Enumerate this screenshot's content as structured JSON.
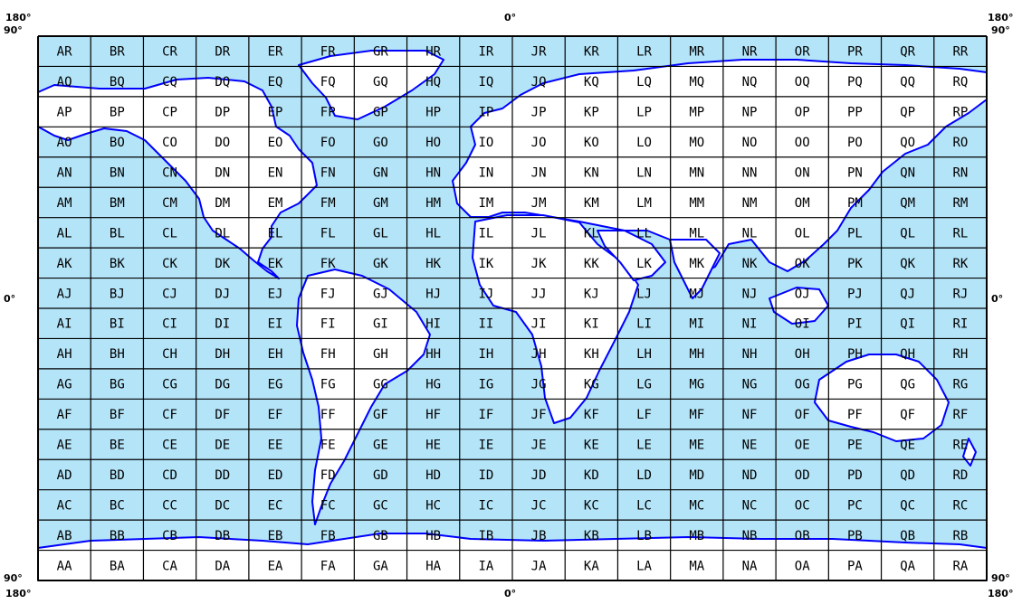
{
  "axis_labels": {
    "top_left": "180°",
    "top_left_side": "90°",
    "top_center": "0°",
    "top_right": "180°",
    "top_right_side": "90°",
    "left_center": "0°",
    "right_center": "0°",
    "bottom_left_side": "90°",
    "bottom_left": "180°",
    "bottom_center": "0°",
    "bottom_right_side": "90°",
    "bottom_right": "180°"
  },
  "grid": {
    "columns": [
      "A",
      "B",
      "C",
      "D",
      "E",
      "F",
      "G",
      "H",
      "I",
      "J",
      "K",
      "L",
      "M",
      "N",
      "O",
      "P",
      "Q",
      "R"
    ],
    "rows": [
      "R",
      "Q",
      "P",
      "O",
      "N",
      "M",
      "L",
      "K",
      "J",
      "I",
      "H",
      "G",
      "F",
      "E",
      "D",
      "C",
      "B",
      "A"
    ],
    "labels": [
      [
        "AR",
        "BR",
        "CR",
        "DR",
        "ER",
        "FR",
        "GR",
        "HR",
        "IR",
        "JR",
        "KR",
        "LR",
        "MR",
        "NR",
        "OR",
        "PR",
        "QR",
        "RR"
      ],
      [
        "AQ",
        "BQ",
        "CQ",
        "DQ",
        "EQ",
        "FQ",
        "GQ",
        "HQ",
        "IQ",
        "JQ",
        "KQ",
        "LQ",
        "MQ",
        "NQ",
        "OQ",
        "PQ",
        "QQ",
        "RQ"
      ],
      [
        "AP",
        "BP",
        "CP",
        "DP",
        "EP",
        "FP",
        "GP",
        "HP",
        "IP",
        "JP",
        "KP",
        "LP",
        "MP",
        "NP",
        "OP",
        "PP",
        "QP",
        "RP"
      ],
      [
        "AO",
        "BO",
        "CO",
        "DO",
        "EO",
        "FO",
        "GO",
        "HO",
        "IO",
        "JO",
        "KO",
        "LO",
        "MO",
        "NO",
        "OO",
        "PO",
        "QO",
        "RO"
      ],
      [
        "AN",
        "BN",
        "CN",
        "DN",
        "EN",
        "FN",
        "GN",
        "HN",
        "IN",
        "JN",
        "KN",
        "LN",
        "MN",
        "NN",
        "ON",
        "PN",
        "QN",
        "RN"
      ],
      [
        "AM",
        "BM",
        "CM",
        "DM",
        "EM",
        "FM",
        "GM",
        "HM",
        "IM",
        "JM",
        "KM",
        "LM",
        "MM",
        "NM",
        "OM",
        "PM",
        "QM",
        "RM"
      ],
      [
        "AL",
        "BL",
        "CL",
        "DL",
        "EL",
        "FL",
        "GL",
        "HL",
        "IL",
        "JL",
        "KL",
        "LL",
        "ML",
        "NL",
        "OL",
        "PL",
        "QL",
        "RL"
      ],
      [
        "AK",
        "BK",
        "CK",
        "DK",
        "EK",
        "FK",
        "GK",
        "HK",
        "IK",
        "JK",
        "KK",
        "LK",
        "MK",
        "NK",
        "OK",
        "PK",
        "QK",
        "RK"
      ],
      [
        "AJ",
        "BJ",
        "CJ",
        "DJ",
        "EJ",
        "FJ",
        "GJ",
        "HJ",
        "IJ",
        "JJ",
        "KJ",
        "LJ",
        "MJ",
        "NJ",
        "OJ",
        "PJ",
        "QJ",
        "RJ"
      ],
      [
        "AI",
        "BI",
        "CI",
        "DI",
        "EI",
        "FI",
        "GI",
        "HI",
        "II",
        "JI",
        "KI",
        "LI",
        "MI",
        "NI",
        "OI",
        "PI",
        "QI",
        "RI"
      ],
      [
        "AH",
        "BH",
        "CH",
        "DH",
        "EH",
        "FH",
        "GH",
        "HH",
        "IH",
        "JH",
        "KH",
        "LH",
        "MH",
        "NH",
        "OH",
        "PH",
        "QH",
        "RH"
      ],
      [
        "AG",
        "BG",
        "CG",
        "DG",
        "EG",
        "FG",
        "GG",
        "HG",
        "IG",
        "JG",
        "KG",
        "LG",
        "MG",
        "NG",
        "OG",
        "PG",
        "QG",
        "RG"
      ],
      [
        "AF",
        "BF",
        "CF",
        "DF",
        "EF",
        "FF",
        "GF",
        "HF",
        "IF",
        "JF",
        "KF",
        "LF",
        "MF",
        "NF",
        "OF",
        "PF",
        "QF",
        "RF"
      ],
      [
        "AE",
        "BE",
        "CE",
        "DE",
        "EE",
        "FE",
        "GE",
        "HE",
        "IE",
        "JE",
        "KE",
        "LE",
        "ME",
        "NE",
        "OE",
        "PE",
        "QE",
        "RE"
      ],
      [
        "AD",
        "BD",
        "CD",
        "DD",
        "ED",
        "FD",
        "GD",
        "HD",
        "ID",
        "JD",
        "KD",
        "LD",
        "MD",
        "ND",
        "OD",
        "PD",
        "QD",
        "RD"
      ],
      [
        "AC",
        "BC",
        "CC",
        "DC",
        "EC",
        "FC",
        "GC",
        "HC",
        "IC",
        "JC",
        "KC",
        "LC",
        "MC",
        "NC",
        "OC",
        "PC",
        "QC",
        "RC"
      ],
      [
        "AB",
        "BB",
        "CB",
        "DB",
        "EB",
        "FB",
        "GB",
        "HB",
        "IB",
        "JB",
        "KB",
        "LB",
        "MB",
        "NB",
        "OB",
        "PB",
        "QB",
        "RB"
      ],
      [
        "AA",
        "BA",
        "CA",
        "DA",
        "EA",
        "FA",
        "GA",
        "HA",
        "IA",
        "JA",
        "KA",
        "LA",
        "MA",
        "NA",
        "OA",
        "PA",
        "QA",
        "RA"
      ]
    ]
  },
  "colors": {
    "ocean": "#b4e4f8",
    "land": "#ffffff",
    "coastline": "#0000ff",
    "grid_lines": "#000000",
    "label_text": "#000000"
  }
}
